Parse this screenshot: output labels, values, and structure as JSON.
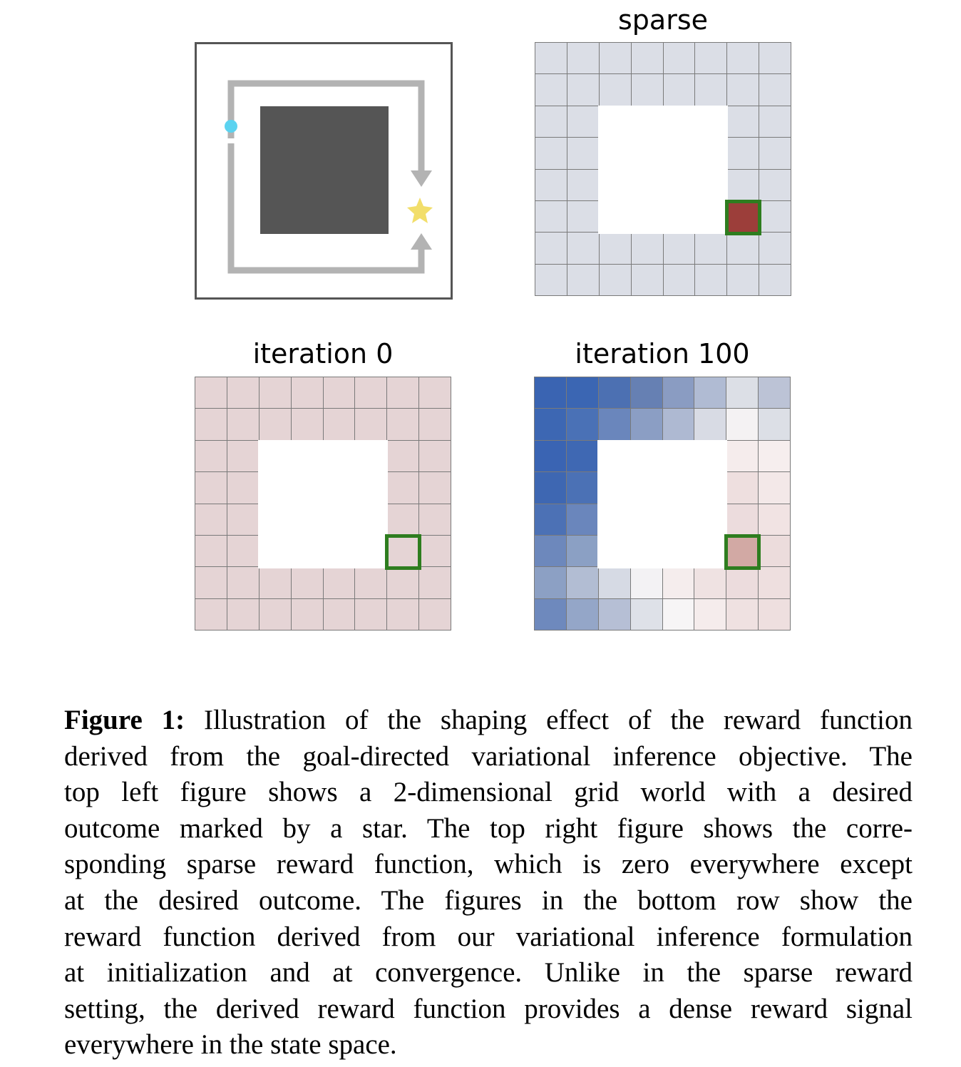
{
  "panels": {
    "sparse_title": "sparse",
    "iter0_title": "iteration 0",
    "iter100_title": "iteration 100"
  },
  "colors": {
    "sparse_bg": "#dbdee6",
    "sparse_goal": "#9c3e3a",
    "iter0_bg": "#e5d4d5",
    "goal_border": "#2e7d1f",
    "iter100_goal": "#d2a9a4",
    "agent": "#5bd3f0",
    "star": "#f2de6a",
    "obstacle": "#555555",
    "arrow": "#b3b3b3"
  },
  "icons": {
    "agent": "agent-dot-icon",
    "goal": "star-icon"
  },
  "iter100_cells": [
    [
      "#3a64b2",
      "#3b66b3",
      "#4c70b2",
      "#6680b3",
      "#8a9cc2",
      "#b0bbd3",
      "#dcdfe6",
      "#bcc3d6"
    ],
    [
      "#3d67b3",
      "#4a71b6",
      "#6a86bc",
      "#8b9ec4",
      "#aeb9d2",
      "#d8dbe4",
      "#f4f2f3",
      "#dcdfe6"
    ],
    [
      "#3a64b3",
      "#3f68b3",
      null,
      null,
      null,
      null,
      "#f5ecec",
      "#f6eeee"
    ],
    [
      "#3e67b2",
      "#4b71b5",
      null,
      null,
      null,
      null,
      "#eedfdf",
      "#f3e8e8"
    ],
    [
      "#4c71b5",
      "#6a86bc",
      null,
      null,
      null,
      null,
      "#ecdcdd",
      "#f1e3e3"
    ],
    [
      "#6d88bc",
      "#8ba0c4",
      null,
      null,
      null,
      null,
      "#d2a9a4",
      "#ecdcdc"
    ],
    [
      "#8ca0c4",
      "#b2bdd3",
      "#d6dae4",
      "#f3f2f4",
      "#f5eded",
      "#efe2e2",
      "#ecdcdd",
      "#eedfdf"
    ],
    [
      "#6e89bd",
      "#94a6c8",
      "#b6bfd5",
      "#dee1e8",
      "#f7f5f6",
      "#f5ecec",
      "#efe1e1",
      "#eedfdf"
    ]
  ],
  "caption": {
    "label": "Figure 1:",
    "lines": [
      " Illustration of the shaping effect of the reward function",
      "derived from the goal-directed variational inference objective. The",
      "top left figure shows a 2-dimensional grid world with a desired",
      "outcome marked by a star. The top right figure shows the corre-",
      "sponding sparse reward function, which is zero everywhere except",
      "at the desired outcome. The figures in the bottom row show the",
      "reward function derived from our variational inference formulation",
      "at initialization and at convergence. Unlike in the sparse reward",
      "setting, the derived reward function provides a dense reward signal",
      "everywhere in the state space."
    ]
  }
}
